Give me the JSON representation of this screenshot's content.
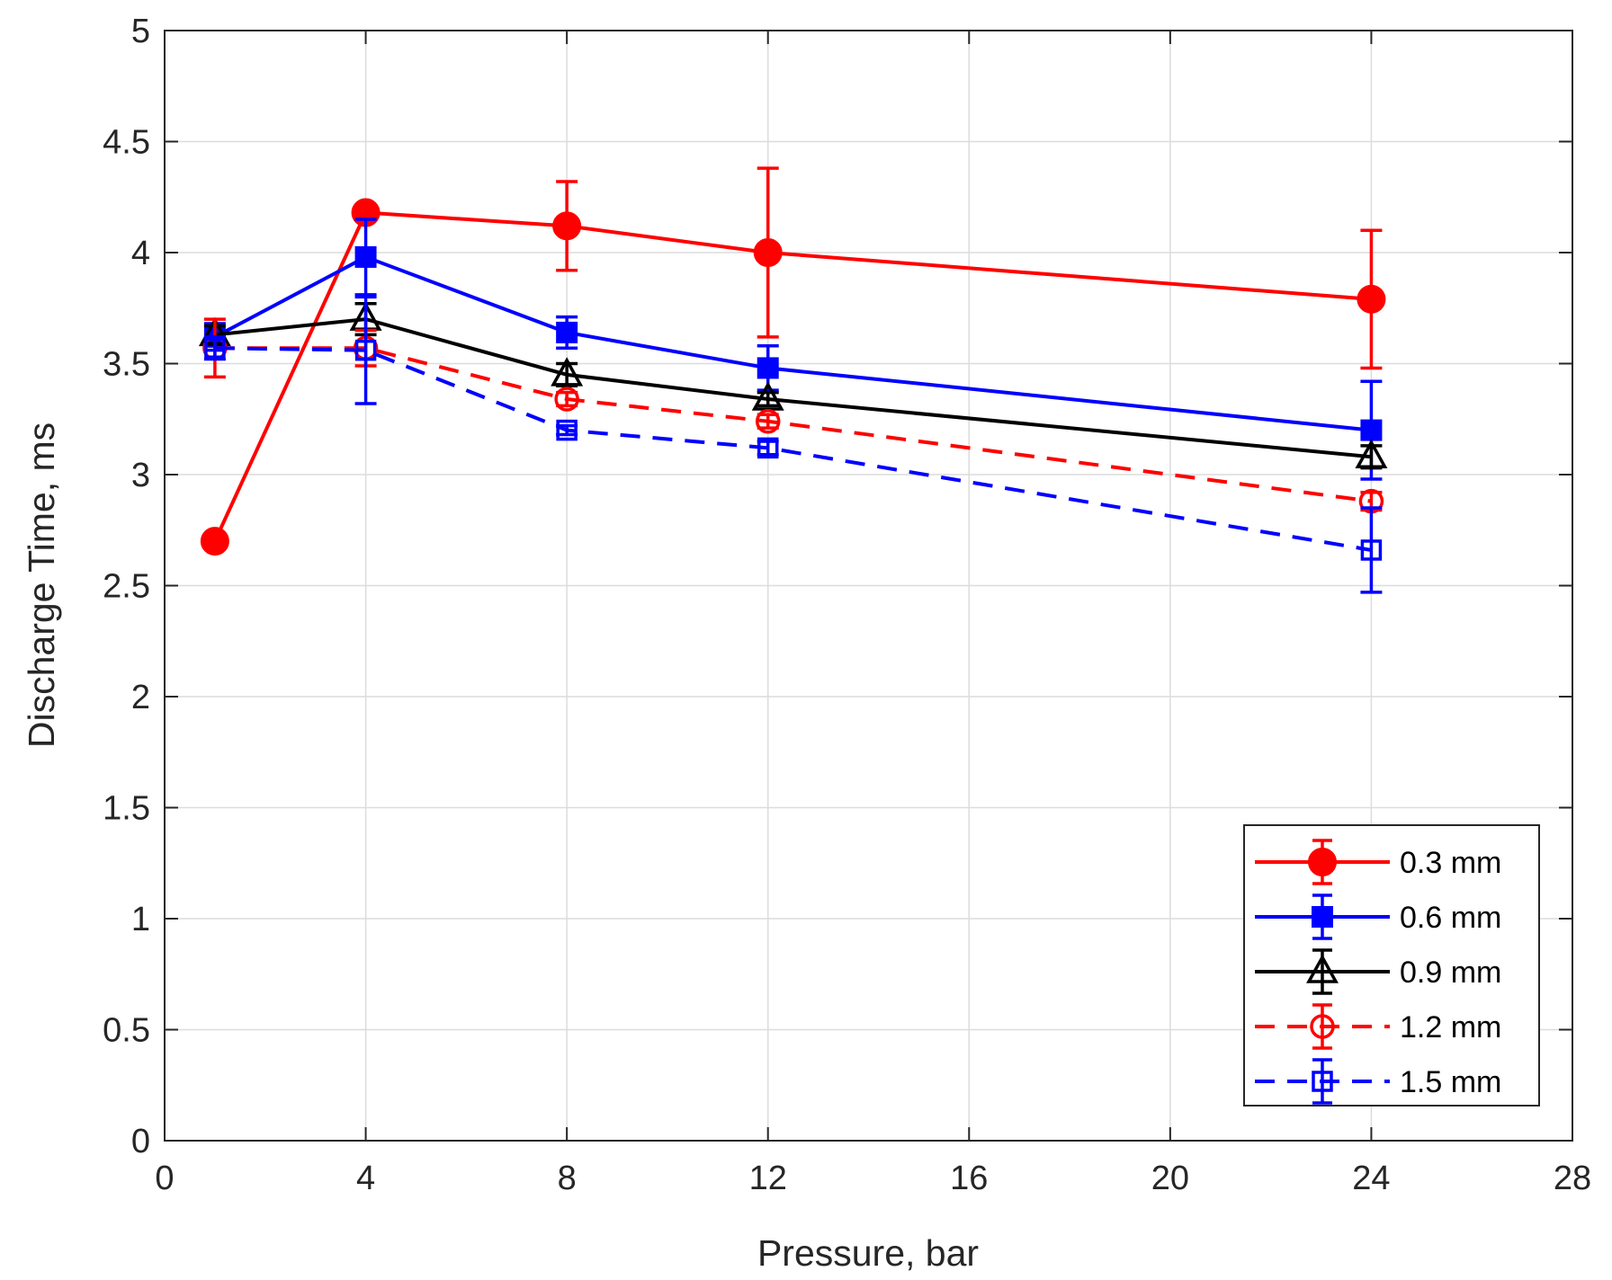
{
  "chart_data": {
    "type": "line",
    "title": "",
    "xlabel": "Pressure, bar",
    "ylabel": "Discharge Time, ms",
    "xlim": [
      0,
      28
    ],
    "ylim": [
      0,
      5
    ],
    "xticks": [
      0,
      4,
      8,
      12,
      16,
      20,
      24,
      28
    ],
    "xtick_labels": [
      "0",
      "4",
      "8",
      "12",
      "16",
      "20",
      "24",
      "28"
    ],
    "yticks": [
      0,
      0.5,
      1,
      1.5,
      2,
      2.5,
      3,
      3.5,
      4,
      4.5,
      5
    ],
    "ytick_labels": [
      "0",
      "0.5",
      "1",
      "1.5",
      "2",
      "2.5",
      "3",
      "3.5",
      "4",
      "4.5",
      "5"
    ],
    "grid": true,
    "legend_position": "bottom-right",
    "series": [
      {
        "name": "0.3 mm",
        "color": "#ff0000",
        "line_style": "solid",
        "marker": "circle-filled",
        "x": [
          1,
          4,
          8,
          12,
          24
        ],
        "y": [
          2.7,
          4.18,
          4.12,
          4.0,
          3.79
        ],
        "error": [
          0.0,
          0.03,
          0.2,
          0.38,
          0.31
        ]
      },
      {
        "name": "0.6 mm",
        "color": "#0000ff",
        "line_style": "solid",
        "marker": "square-filled",
        "x": [
          1,
          4,
          8,
          12,
          24
        ],
        "y": [
          3.62,
          3.98,
          3.64,
          3.48,
          3.2
        ],
        "error": [
          0.06,
          0.17,
          0.07,
          0.1,
          0.22
        ]
      },
      {
        "name": "0.9 mm",
        "color": "#000000",
        "line_style": "solid",
        "marker": "triangle-open",
        "x": [
          1,
          4,
          8,
          12,
          24
        ],
        "y": [
          3.63,
          3.7,
          3.45,
          3.34,
          3.08
        ],
        "error": [
          0.04,
          0.07,
          0.05,
          0.03,
          0.05
        ]
      },
      {
        "name": "1.2 mm",
        "color": "#ff0000",
        "line_style": "dashed",
        "marker": "circle-open",
        "x": [
          1,
          4,
          8,
          12,
          24
        ],
        "y": [
          3.57,
          3.57,
          3.34,
          3.24,
          2.88
        ],
        "error": [
          0.13,
          0.08,
          0.03,
          0.03,
          0.04
        ]
      },
      {
        "name": "1.5 mm",
        "color": "#0000ff",
        "line_style": "dashed",
        "marker": "square-open",
        "x": [
          1,
          4,
          8,
          12,
          24
        ],
        "y": [
          3.57,
          3.56,
          3.2,
          3.12,
          2.66
        ],
        "error": [
          0.05,
          0.24,
          0.02,
          0.03,
          0.19
        ]
      }
    ]
  }
}
